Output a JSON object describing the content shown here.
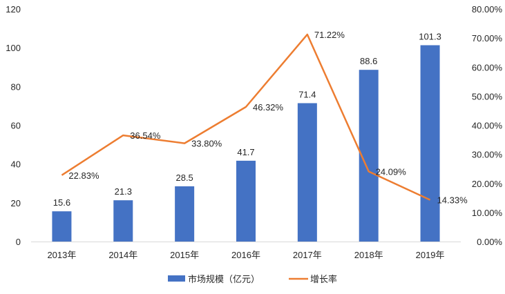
{
  "chart_data": {
    "type": "bar+line",
    "categories": [
      "2013年",
      "2014年",
      "2015年",
      "2016年",
      "2017年",
      "2018年",
      "2019年"
    ],
    "series": [
      {
        "name": "市场规模（亿元）",
        "type": "bar",
        "axis": "left",
        "color": "#4472C4",
        "values": [
          15.6,
          21.3,
          28.5,
          41.7,
          71.4,
          88.6,
          101.3
        ],
        "labels": [
          "15.6",
          "21.3",
          "28.5",
          "41.7",
          "71.4",
          "88.6",
          "101.3"
        ]
      },
      {
        "name": "增长率",
        "type": "line",
        "axis": "right",
        "color": "#ED7D31",
        "values": [
          22.83,
          36.54,
          33.8,
          46.32,
          71.22,
          24.09,
          14.33
        ],
        "labels": [
          "22.83%",
          "36.54%",
          "33.80%",
          "46.32%",
          "71.22%",
          "24.09%",
          "14.33%"
        ]
      }
    ],
    "y_left": {
      "range": [
        0,
        120
      ],
      "ticks": [
        "0",
        "20",
        "40",
        "60",
        "80",
        "100",
        "120"
      ]
    },
    "y_right": {
      "range": [
        0,
        80
      ],
      "ticks": [
        "0.00%",
        "10.00%",
        "20.00%",
        "30.00%",
        "40.00%",
        "50.00%",
        "60.00%",
        "70.00%",
        "80.00%"
      ]
    },
    "grid": false,
    "legend": "bottom",
    "title": "",
    "xlabel": "",
    "ylabel": ""
  }
}
